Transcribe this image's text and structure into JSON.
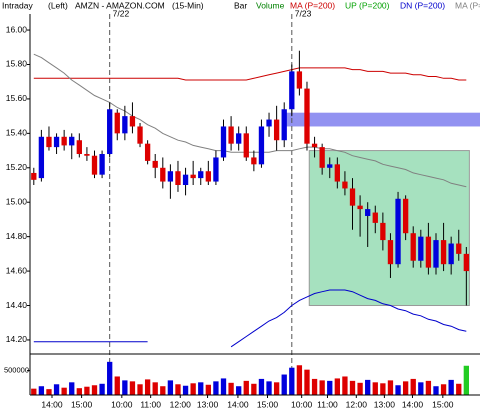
{
  "chart_data": {
    "type": "candlestick",
    "header": [
      {
        "text": "Intraday",
        "color": "#000000"
      },
      {
        "text": "(Left)",
        "color": "#000000"
      },
      {
        "text": "AMZN - AMAZON.COM",
        "color": "#000000"
      },
      {
        "text": "(15-Min)",
        "color": "#000000"
      },
      {
        "text": "Bar",
        "color": "#000000"
      },
      {
        "text": "Volume",
        "color": "#008000"
      },
      {
        "text": "MA (P=200)",
        "color": "#cc0000"
      },
      {
        "text": "UP (P=200)",
        "color": "#00a000"
      },
      {
        "text": "DN (P=200)",
        "color": "#0000cc"
      },
      {
        "text": "MA (P=200)",
        "color": "#808080"
      }
    ],
    "up_color": "#0000dd",
    "down_color": "#dd0000",
    "xlim": [
      -0.5,
      58.8
    ],
    "ylim": [
      14.13,
      16.07
    ],
    "yticks": [
      {
        "value": 16.0,
        "label": "16.00"
      },
      {
        "value": 15.8,
        "label": "15.80"
      },
      {
        "value": 15.6,
        "label": "15.60"
      },
      {
        "value": 15.4,
        "label": "15.40"
      },
      {
        "value": 15.2,
        "label": "15.20"
      },
      {
        "value": 15.0,
        "label": "15.00"
      },
      {
        "value": 14.8,
        "label": "14.80"
      },
      {
        "value": 14.6,
        "label": "14.60"
      },
      {
        "value": 14.4,
        "label": "14.40"
      },
      {
        "value": 14.2,
        "label": "14.20"
      }
    ],
    "xticks": [
      {
        "value": 2.4,
        "label": "14:00"
      },
      {
        "value": 6.3,
        "label": "15:00"
      },
      {
        "value": 11.6,
        "label": "10:00"
      },
      {
        "value": 15.4,
        "label": "11:00"
      },
      {
        "value": 19.3,
        "label": "12:00"
      },
      {
        "value": 22.9,
        "label": "13:00"
      },
      {
        "value": 26.9,
        "label": "14:00"
      },
      {
        "value": 30.8,
        "label": "15:00"
      },
      {
        "value": 35.3,
        "label": "10:00"
      },
      {
        "value": 38.7,
        "label": "11:00"
      },
      {
        "value": 42.5,
        "label": "12:00"
      },
      {
        "value": 46.2,
        "label": "13:00"
      },
      {
        "value": 49.9,
        "label": "14:00"
      },
      {
        "value": 53.9,
        "label": "15:00"
      }
    ],
    "day_marks": [
      {
        "x": 10,
        "label": "7/22"
      },
      {
        "x": 34,
        "label": "7/23"
      }
    ],
    "candles": [
      {
        "open": 15.17,
        "high": 15.2,
        "low": 15.1,
        "close": 15.13
      },
      {
        "open": 15.14,
        "high": 15.42,
        "low": 15.12,
        "close": 15.38
      },
      {
        "open": 15.38,
        "high": 15.44,
        "low": 15.3,
        "close": 15.32
      },
      {
        "open": 15.32,
        "high": 15.4,
        "low": 15.28,
        "close": 15.38
      },
      {
        "open": 15.38,
        "high": 15.42,
        "low": 15.3,
        "close": 15.33
      },
      {
        "open": 15.33,
        "high": 15.4,
        "low": 15.25,
        "close": 15.38
      },
      {
        "open": 15.36,
        "high": 15.4,
        "low": 15.26,
        "close": 15.28
      },
      {
        "open": 15.28,
        "high": 15.32,
        "low": 15.24,
        "close": 15.27
      },
      {
        "open": 15.27,
        "high": 15.3,
        "low": 15.14,
        "close": 15.16
      },
      {
        "open": 15.16,
        "high": 15.3,
        "low": 15.14,
        "close": 15.28
      },
      {
        "open": 15.28,
        "high": 15.58,
        "low": 15.26,
        "close": 15.54
      },
      {
        "open": 15.52,
        "high": 15.54,
        "low": 15.36,
        "close": 15.4
      },
      {
        "open": 15.4,
        "high": 15.56,
        "low": 15.36,
        "close": 15.5
      },
      {
        "open": 15.5,
        "high": 15.58,
        "low": 15.4,
        "close": 15.44
      },
      {
        "open": 15.44,
        "high": 15.46,
        "low": 15.32,
        "close": 15.34
      },
      {
        "open": 15.34,
        "high": 15.36,
        "low": 15.22,
        "close": 15.24
      },
      {
        "open": 15.24,
        "high": 15.28,
        "low": 15.14,
        "close": 15.2
      },
      {
        "open": 15.2,
        "high": 15.26,
        "low": 15.08,
        "close": 15.12
      },
      {
        "open": 15.12,
        "high": 15.22,
        "low": 15.02,
        "close": 15.18
      },
      {
        "open": 15.18,
        "high": 15.24,
        "low": 15.06,
        "close": 15.1
      },
      {
        "open": 15.1,
        "high": 15.2,
        "low": 15.04,
        "close": 15.16
      },
      {
        "open": 15.16,
        "high": 15.24,
        "low": 15.1,
        "close": 15.14
      },
      {
        "open": 15.14,
        "high": 15.2,
        "low": 15.1,
        "close": 15.18
      },
      {
        "open": 15.18,
        "high": 15.24,
        "low": 15.1,
        "close": 15.12
      },
      {
        "open": 15.12,
        "high": 15.3,
        "low": 15.1,
        "close": 15.26
      },
      {
        "open": 15.26,
        "high": 15.48,
        "low": 15.24,
        "close": 15.44
      },
      {
        "open": 15.44,
        "high": 15.5,
        "low": 15.3,
        "close": 15.34
      },
      {
        "open": 15.34,
        "high": 15.44,
        "low": 15.3,
        "close": 15.4
      },
      {
        "open": 15.4,
        "high": 15.44,
        "low": 15.24,
        "close": 15.26
      },
      {
        "open": 15.26,
        "high": 15.3,
        "low": 15.18,
        "close": 15.22
      },
      {
        "open": 15.22,
        "high": 15.48,
        "low": 15.2,
        "close": 15.44
      },
      {
        "open": 15.44,
        "high": 15.52,
        "low": 15.38,
        "close": 15.48
      },
      {
        "open": 15.48,
        "high": 15.56,
        "low": 15.3,
        "close": 15.36
      },
      {
        "open": 15.36,
        "high": 15.58,
        "low": 15.32,
        "close": 15.54
      },
      {
        "open": 15.54,
        "high": 15.8,
        "low": 15.5,
        "close": 15.76
      },
      {
        "open": 15.76,
        "high": 15.88,
        "low": 15.62,
        "close": 15.66
      },
      {
        "open": 15.66,
        "high": 15.7,
        "low": 15.3,
        "close": 15.34
      },
      {
        "open": 15.34,
        "high": 15.38,
        "low": 15.26,
        "close": 15.32
      },
      {
        "open": 15.32,
        "high": 15.34,
        "low": 15.16,
        "close": 15.2
      },
      {
        "open": 15.2,
        "high": 15.26,
        "low": 15.14,
        "close": 15.22
      },
      {
        "open": 15.22,
        "high": 15.26,
        "low": 15.08,
        "close": 15.12
      },
      {
        "open": 15.12,
        "high": 15.18,
        "low": 15.04,
        "close": 15.08
      },
      {
        "open": 15.08,
        "high": 15.14,
        "low": 14.84,
        "close": 14.98
      },
      {
        "open": 14.98,
        "high": 15.04,
        "low": 14.8,
        "close": 14.96
      },
      {
        "open": 14.92,
        "high": 15.0,
        "low": 14.74,
        "close": 14.96
      },
      {
        "open": 14.94,
        "high": 14.98,
        "low": 14.82,
        "close": 14.88
      },
      {
        "open": 14.88,
        "high": 14.94,
        "low": 14.72,
        "close": 14.78
      },
      {
        "open": 14.78,
        "high": 14.82,
        "low": 14.56,
        "close": 14.64
      },
      {
        "open": 14.64,
        "high": 15.06,
        "low": 14.62,
        "close": 15.02
      },
      {
        "open": 15.02,
        "high": 15.04,
        "low": 14.78,
        "close": 14.82
      },
      {
        "open": 14.82,
        "high": 14.86,
        "low": 14.62,
        "close": 14.66
      },
      {
        "open": 14.66,
        "high": 14.84,
        "low": 14.62,
        "close": 14.8
      },
      {
        "open": 14.8,
        "high": 14.88,
        "low": 14.58,
        "close": 14.62
      },
      {
        "open": 14.62,
        "high": 14.82,
        "low": 14.58,
        "close": 14.78
      },
      {
        "open": 14.78,
        "high": 14.88,
        "low": 14.6,
        "close": 14.64
      },
      {
        "open": 14.64,
        "high": 14.8,
        "low": 14.58,
        "close": 14.76
      },
      {
        "open": 14.76,
        "high": 14.84,
        "low": 14.66,
        "close": 14.7
      },
      {
        "open": 14.7,
        "high": 14.74,
        "low": 14.4,
        "close": 14.6
      }
    ],
    "lines": [
      {
        "color": "#cc0000",
        "values": [
          15.72,
          15.72,
          15.72,
          15.72,
          15.72,
          15.72,
          15.72,
          15.72,
          15.72,
          15.72,
          15.72,
          15.72,
          15.72,
          15.72,
          15.72,
          15.72,
          15.72,
          15.72,
          15.72,
          15.72,
          15.71,
          15.71,
          15.71,
          15.71,
          15.71,
          15.71,
          15.71,
          15.71,
          15.71,
          15.72,
          15.73,
          15.74,
          15.75,
          15.76,
          15.77,
          15.78,
          15.78,
          15.78,
          15.78,
          15.78,
          15.78,
          15.78,
          15.77,
          15.77,
          15.76,
          15.76,
          15.76,
          15.75,
          15.75,
          15.75,
          15.74,
          15.74,
          15.73,
          15.73,
          15.72,
          15.72,
          15.71,
          15.71
        ]
      },
      {
        "color": "#808080",
        "values": [
          15.86,
          15.84,
          15.81,
          15.78,
          15.75,
          15.71,
          15.68,
          15.65,
          15.62,
          15.6,
          15.58,
          15.55,
          15.53,
          15.5,
          15.48,
          15.45,
          15.43,
          15.4,
          15.38,
          15.36,
          15.35,
          15.33,
          15.32,
          15.31,
          15.3,
          15.3,
          15.29,
          15.29,
          15.29,
          15.29,
          15.29,
          15.29,
          15.3,
          15.3,
          15.3,
          15.31,
          15.32,
          15.32,
          15.31,
          15.31,
          15.3,
          15.29,
          15.27,
          15.26,
          15.25,
          15.24,
          15.22,
          15.21,
          15.2,
          15.19,
          15.17,
          15.16,
          15.15,
          15.14,
          15.13,
          15.11,
          15.1,
          15.09
        ]
      },
      {
        "color": "#0000cc",
        "values": [
          14.19,
          14.19,
          14.19,
          14.19,
          14.19,
          14.19,
          14.19,
          14.19,
          14.19,
          14.19,
          14.19,
          14.19,
          14.19,
          14.19,
          14.19,
          14.19,
          null,
          null,
          null,
          null,
          null,
          null,
          null,
          null,
          null,
          null,
          14.16,
          14.19,
          14.22,
          14.25,
          14.28,
          14.31,
          14.33,
          14.36,
          14.4,
          14.43,
          14.45,
          14.47,
          14.48,
          14.49,
          14.49,
          14.49,
          14.48,
          14.46,
          14.44,
          14.43,
          14.41,
          14.4,
          14.38,
          14.37,
          14.35,
          14.34,
          14.32,
          14.31,
          14.29,
          14.28,
          14.26,
          14.25
        ]
      }
    ],
    "zones": [
      {
        "x": [
          33.3,
          58.8
        ],
        "y": [
          15.44,
          15.52
        ],
        "color": "#8c8cf0"
      },
      {
        "x": [
          36.3,
          57.4
        ],
        "y": [
          14.4,
          15.3
        ],
        "color": "#96dcb4"
      }
    ],
    "volume": {
      "values": [
        130000,
        180000,
        120000,
        220000,
        150000,
        260000,
        140000,
        170000,
        200000,
        230000,
        680000,
        380000,
        300000,
        280000,
        220000,
        320000,
        260000,
        180000,
        300000,
        220000,
        190000,
        240000,
        260000,
        210000,
        280000,
        340000,
        250000,
        180000,
        290000,
        230000,
        330000,
        280000,
        260000,
        420000,
        560000,
        610000,
        520000,
        330000,
        300000,
        290000,
        340000,
        380000,
        290000,
        250000,
        310000,
        260000,
        240000,
        300000,
        200000,
        280000,
        330000,
        260000,
        290000,
        180000,
        220000,
        310000,
        230000,
        600000
      ],
      "last_color": "#22cc22",
      "ylim": [
        0,
        800000
      ],
      "yticks": [
        500000
      ]
    }
  }
}
